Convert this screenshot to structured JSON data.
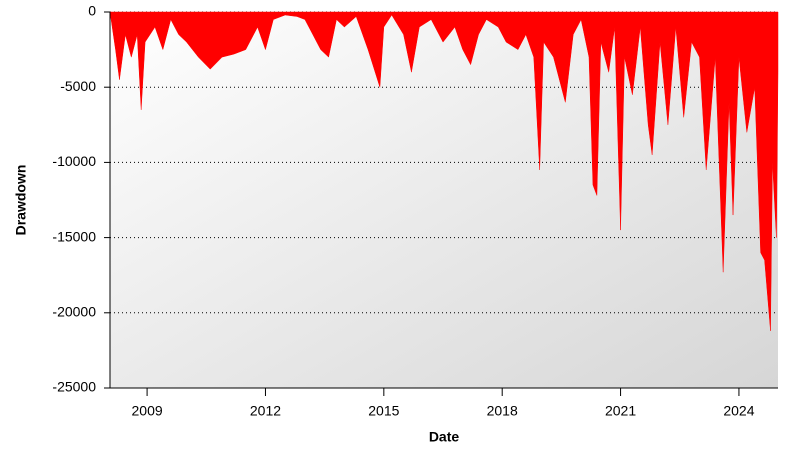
{
  "chart_data": {
    "type": "area",
    "x_label": "Date",
    "y_label": "Drawdown",
    "color": "#ff0000",
    "grid": true,
    "x": [
      2008.06,
      2008.2,
      2008.3,
      2008.45,
      2008.6,
      2008.75,
      2008.85,
      2008.95,
      2009.2,
      2009.4,
      2009.6,
      2009.8,
      2010.0,
      2010.3,
      2010.6,
      2010.9,
      2011.2,
      2011.5,
      2011.8,
      2012.0,
      2012.2,
      2012.5,
      2012.8,
      2013.0,
      2013.2,
      2013.4,
      2013.6,
      2013.8,
      2014.0,
      2014.3,
      2014.6,
      2014.9,
      2015.0,
      2015.2,
      2015.5,
      2015.7,
      2015.9,
      2016.2,
      2016.5,
      2016.8,
      2017.0,
      2017.2,
      2017.4,
      2017.6,
      2017.9,
      2018.1,
      2018.4,
      2018.6,
      2018.8,
      2018.95,
      2019.05,
      2019.3,
      2019.6,
      2019.8,
      2020.0,
      2020.2,
      2020.3,
      2020.4,
      2020.5,
      2020.7,
      2020.85,
      2021.0,
      2021.1,
      2021.3,
      2021.5,
      2021.7,
      2021.8,
      2022.0,
      2022.2,
      2022.4,
      2022.6,
      2022.8,
      2023.0,
      2023.17,
      2023.4,
      2023.6,
      2023.75,
      2023.85,
      2024.0,
      2024.2,
      2024.4,
      2024.55,
      2024.65,
      2024.8,
      2024.85,
      2024.95,
      2024.99
    ],
    "values": [
      0,
      -2500,
      -4500,
      -1500,
      -3000,
      -1500,
      -6500,
      -2000,
      -1000,
      -2500,
      -500,
      -1500,
      -2000,
      -3000,
      -3800,
      -3000,
      -2800,
      -2500,
      -1000,
      -2500,
      -500,
      -200,
      -300,
      -500,
      -1500,
      -2500,
      -3000,
      -500,
      -1000,
      -300,
      -2500,
      -5000,
      -1000,
      -200,
      -1500,
      -4000,
      -1000,
      -500,
      -2000,
      -1000,
      -2500,
      -3500,
      -1500,
      -500,
      -1000,
      -2000,
      -2500,
      -1500,
      -3000,
      -10500,
      -2000,
      -3000,
      -6000,
      -1500,
      -500,
      -3000,
      -11500,
      -12200,
      -2000,
      -4000,
      -1000,
      -14500,
      -3000,
      -5500,
      -1000,
      -7500,
      -9500,
      -2000,
      -7500,
      -1000,
      -7000,
      -2000,
      -3000,
      -10500,
      -3000,
      -17300,
      -6000,
      -13500,
      -3000,
      -8000,
      -5000,
      -16000,
      -16500,
      -21200,
      -10000,
      -15000,
      -4000
    ],
    "xlim": [
      2008.06,
      2024.99
    ],
    "ylim": [
      -25000,
      0
    ],
    "xticks": [
      2009,
      2012,
      2015,
      2018,
      2021,
      2024
    ],
    "yticks": [
      -25000,
      -20000,
      -15000,
      -10000,
      -5000,
      0
    ]
  }
}
